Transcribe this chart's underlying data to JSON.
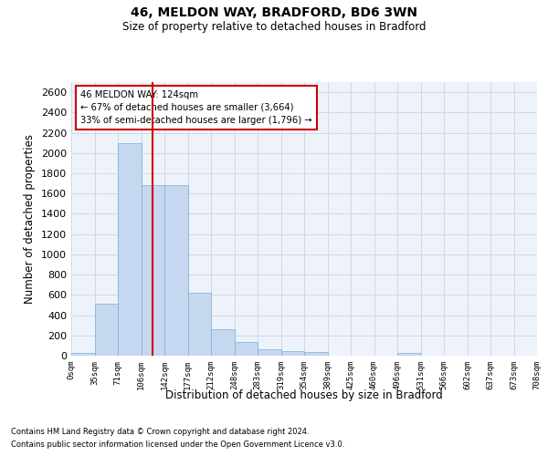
{
  "title1": "46, MELDON WAY, BRADFORD, BD6 3WN",
  "title2": "Size of property relative to detached houses in Bradford",
  "xlabel": "Distribution of detached houses by size in Bradford",
  "ylabel": "Number of detached properties",
  "footnote1": "Contains HM Land Registry data © Crown copyright and database right 2024.",
  "footnote2": "Contains public sector information licensed under the Open Government Licence v3.0.",
  "annotation_line1": "46 MELDON WAY: 124sqm",
  "annotation_line2": "← 67% of detached houses are smaller (3,664)",
  "annotation_line3": "33% of semi-detached houses are larger (1,796) →",
  "bar_color": "#c5d8f0",
  "bar_edge_color": "#7bafd4",
  "marker_color": "#cc0000",
  "bin_labels": [
    "0sqm",
    "35sqm",
    "71sqm",
    "106sqm",
    "142sqm",
    "177sqm",
    "212sqm",
    "248sqm",
    "283sqm",
    "319sqm",
    "354sqm",
    "389sqm",
    "425sqm",
    "460sqm",
    "496sqm",
    "531sqm",
    "566sqm",
    "602sqm",
    "637sqm",
    "673sqm",
    "708sqm"
  ],
  "bar_values": [
    25,
    510,
    2100,
    1680,
    1680,
    625,
    265,
    135,
    60,
    45,
    35,
    0,
    0,
    0,
    25,
    0,
    0,
    0,
    0,
    0
  ],
  "ylim": [
    0,
    2700
  ],
  "yticks": [
    0,
    200,
    400,
    600,
    800,
    1000,
    1200,
    1400,
    1600,
    1800,
    2000,
    2200,
    2400,
    2600
  ],
  "grid_color": "#d0d8e8",
  "background_color": "#eef2fa",
  "property_bin": 3.5
}
